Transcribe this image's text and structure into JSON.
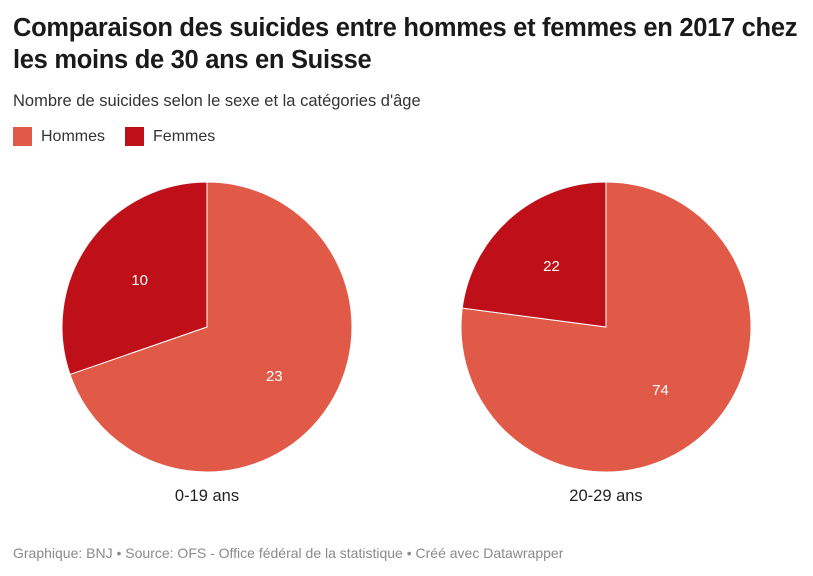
{
  "title": "Comparaison des suicides entre hommes et femmes en 2017 chez les moins de 30 ans en Suisse",
  "subtitle": "Nombre de suicides selon le sexe et la catégories d'âge",
  "footer": "Graphique: BNJ • Source: OFS - Office fédéral de la statistique • Créé avec Datawrapper",
  "chart_data": {
    "type": "pie",
    "legend_placement": "top-left",
    "series": [
      {
        "name": "Hommes",
        "color": "#e05a47"
      },
      {
        "name": "Femmes",
        "color": "#bf1019"
      }
    ],
    "legend": [
      {
        "label": "Hommes",
        "color": "#e05a47"
      },
      {
        "label": "Femmes",
        "color": "#bf1019"
      }
    ],
    "pies": [
      {
        "label": "0-19 ans",
        "values": [
          23,
          10
        ]
      },
      {
        "label": "20-29 ans",
        "values": [
          74,
          22
        ]
      }
    ]
  }
}
